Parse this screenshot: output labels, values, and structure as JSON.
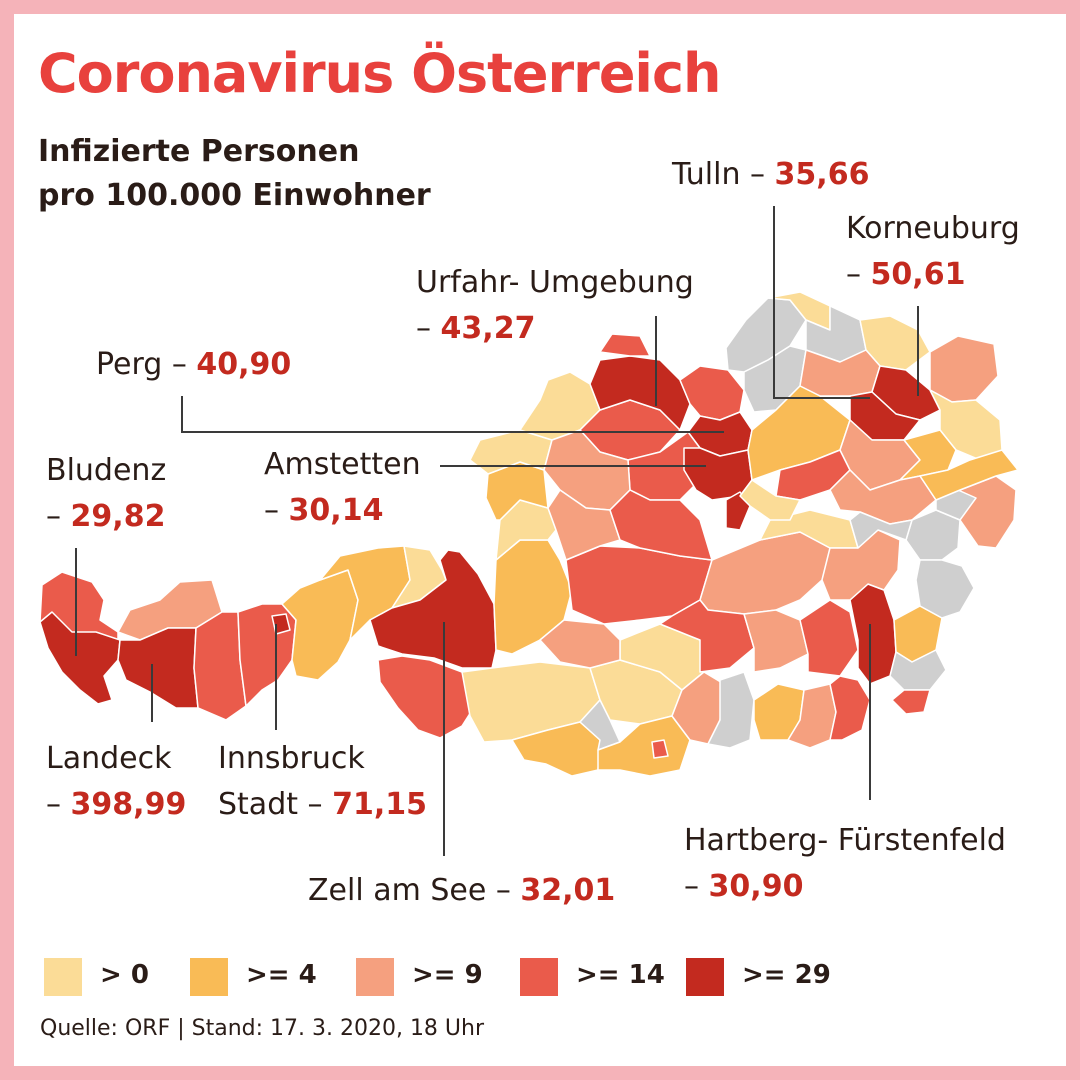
{
  "title": "Coronavirus Österreich",
  "subtitle": [
    "Infizierte Personen",
    "pro 100.000 Einwohner"
  ],
  "colors": {
    "background_frame": "#f5b3b9",
    "title": "#e8413d",
    "value": "#c32a1f",
    "no_data": "#cfcfcf",
    "border": "#ffffff"
  },
  "legend": [
    {
      "label": "> 0",
      "color": "#fbdc97"
    },
    {
      "label": ">= 4",
      "color": "#f9bb56"
    },
    {
      "label": ">= 9",
      "color": "#f5a07f"
    },
    {
      "label": ">= 14",
      "color": "#ea5b4b"
    },
    {
      "label": ">= 29",
      "color": "#c32a1f"
    }
  ],
  "districts": [
    {
      "name": "Tulln",
      "sep": " – ",
      "value": "35,66"
    },
    {
      "name": "Korneuburg",
      "sep": "– ",
      "value": "50,61"
    },
    {
      "name": "Urfahr- Umgebung",
      "sep": "– ",
      "value": "43,27"
    },
    {
      "name": "Perg",
      "sep": " – ",
      "value": "40,90"
    },
    {
      "name": "Amstetten",
      "sep": "– ",
      "value": "30,14"
    },
    {
      "name": "Bludenz",
      "sep": "– ",
      "value": "29,82"
    },
    {
      "name": "Landeck",
      "sep": "– ",
      "value": "398,99"
    },
    {
      "name": "Innsbruck",
      "sep": "Stadt – ",
      "value": "71,15"
    },
    {
      "name": "Zell am See",
      "sep": " – ",
      "value": "32,01"
    },
    {
      "name": "Hartberg- Fürstenfeld",
      "sep": "– ",
      "value": "30,90"
    }
  ],
  "source": "Quelle: ORF | Stand: 17. 3. 2020, 18 Uhr"
}
